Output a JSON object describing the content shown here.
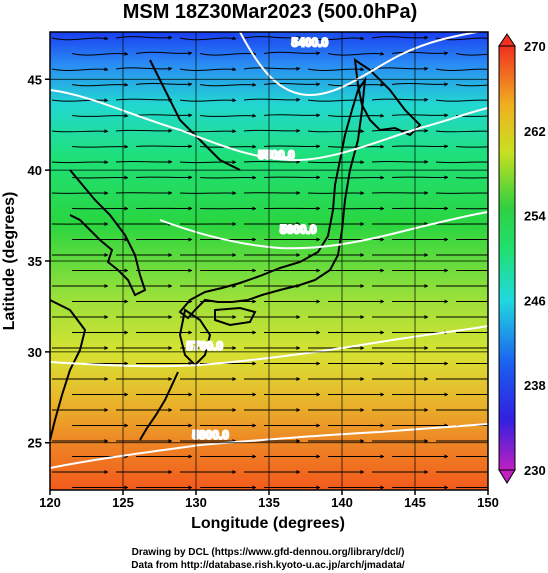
{
  "title": "MSM 18Z30Mar2023 (500.0hPa)",
  "xlabel": "Longitude (degrees)",
  "ylabel": "Latitude  (degrees)",
  "credits": [
    "Drawing by DCL (https://www.gfd-dennou.org/library/dcl/)",
    "Data from http://database.rish.kyoto-u.ac.jp/arch/jmadata/"
  ],
  "chart_data": {
    "type": "heatmap",
    "xlim": [
      120,
      150
    ],
    "ylim": [
      22.4,
      47.6
    ],
    "x_ticks": [
      "120",
      "125",
      "130",
      "135",
      "140",
      "145",
      "150"
    ],
    "y_ticks": [
      "25",
      "30",
      "35",
      "40",
      "45"
    ],
    "grid": true,
    "colorbar": {
      "range": [
        230,
        270
      ],
      "labels": [
        "230",
        "238",
        "246",
        "254",
        "262",
        "270"
      ]
    },
    "contours": [
      {
        "label": "5400.0",
        "lon": 137.8,
        "lat": 46.8
      },
      {
        "label": "5500.0",
        "lon": 135.5,
        "lat": 40.6
      },
      {
        "label": "5600.0",
        "lon": 137.0,
        "lat": 36.5
      },
      {
        "label": "5700.0",
        "lon": 130.6,
        "lat": 30.1
      },
      {
        "label": "5800.0",
        "lon": 131.0,
        "lat": 25.2
      }
    ],
    "colors": {
      "cold": "#1040e0",
      "cool": "#20d8e0",
      "mid": "#20d040",
      "warm": "#c0e020",
      "hot": "#f06020"
    }
  }
}
